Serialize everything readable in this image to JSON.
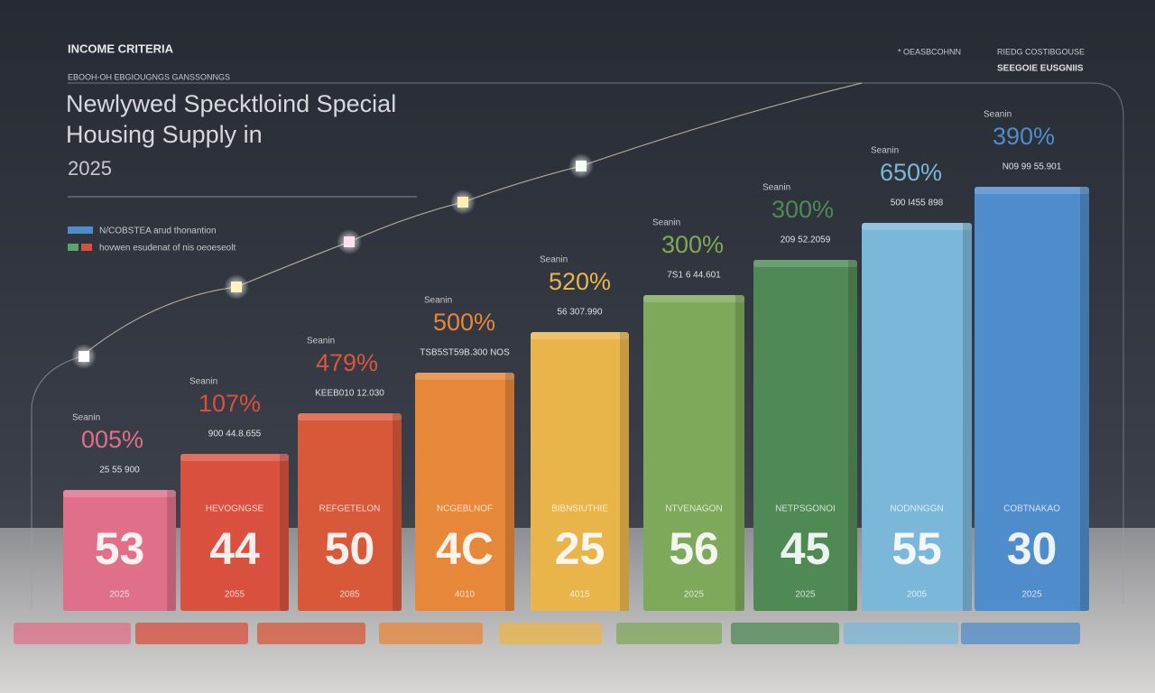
{
  "header": {
    "kicker": "INCOME CRITERIA",
    "subtitle": "EBOOH-OH EBGIOUGNGS GANSSONNGS",
    "title": "Newlywed Specktloind Special Housing Supply in",
    "year": "2025"
  },
  "top_right": {
    "left": "* OEASBCOHNN",
    "right_1": "RIEDG COSTIBGOUSE",
    "right_2": "SEEGOIE EUSGNIIS"
  },
  "legend": [
    "N/COBSTEA arud thonantion",
    "hovwen esudenat of nis oeoeseolt"
  ],
  "columns": [
    {
      "label": "Seanin",
      "percent": "005%",
      "detail": "25 55 900",
      "name": "",
      "number": "53",
      "year": "2025"
    },
    {
      "label": "Seanin",
      "percent": "107%",
      "detail": "900 44.8.655",
      "name": "HEVOGNGSE",
      "number": "44",
      "year": "2055"
    },
    {
      "label": "Seanin",
      "percent": "479%",
      "detail": "KEEB010 12.030",
      "name": "REFGETELON",
      "number": "50",
      "year": "2085"
    },
    {
      "label": "Seanin",
      "percent": "500%",
      "detail": "TSB5ST59B.300 NOS",
      "name": "NCGEBLNOF",
      "number": "4C",
      "year": "4010"
    },
    {
      "label": "Seanin",
      "percent": "520%",
      "detail": "56 307.990",
      "name": "BIBNSIUTHIE",
      "number": "25",
      "year": "4015"
    },
    {
      "label": "Seanin",
      "percent": "300%",
      "detail": "7S1 6 44.601",
      "name": "NTVENAGON",
      "number": "56",
      "year": "2025"
    },
    {
      "label": "Seanin",
      "percent": "300%",
      "detail": "209 52.2059",
      "name": "NETPSGONOI",
      "number": "45",
      "year": "2025"
    },
    {
      "label": "Seanin",
      "percent": "650%",
      "detail": "500 I455 898",
      "name": "NODNNGGN",
      "number": "55",
      "year": "2005"
    },
    {
      "label": "Seanin",
      "percent": "390%",
      "detail": "N09 99 55.901",
      "name": "COBTNAKAO",
      "number": "30",
      "year": "2025"
    }
  ]
}
